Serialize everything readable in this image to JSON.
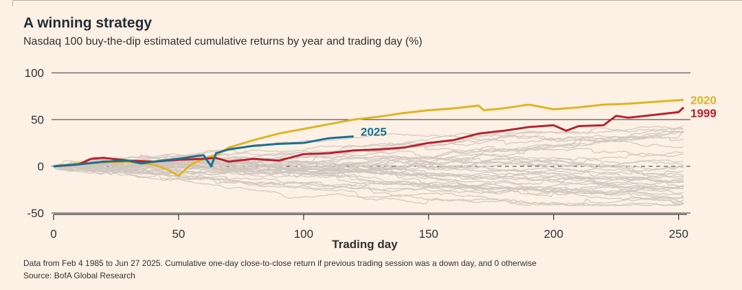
{
  "title": "A winning strategy",
  "subtitle": "Nasdaq 100 buy-the-dip estimated cumulative returns by year and trading day (%)",
  "footnote": "Data from Feb 4 1985 to Jun 27 2025. Cumulative one-day close-to-close return if previous trading session was a down day, and 0 otherwise",
  "source": "Source: BofA Global Research",
  "colors": {
    "background": "#fdf1e6",
    "gray_years": "#cfc5bd",
    "y2020": "#e0b420",
    "y1999": "#b8212f",
    "y2025": "#1b6f90",
    "axis": "#33302e"
  },
  "chart_data": {
    "type": "line",
    "title": "A winning strategy",
    "subtitle": "Nasdaq 100 buy-the-dip estimated cumulative returns by year and trading day (%)",
    "xlabel": "Trading day",
    "ylabel": "",
    "xlim": [
      0,
      252
    ],
    "ylim": [
      -50,
      100
    ],
    "xticks": [
      0,
      50,
      100,
      150,
      200,
      250
    ],
    "yticks": [
      -50,
      0,
      50,
      100
    ],
    "grid": true,
    "legend": "direct-labels",
    "series": [
      {
        "name": "2020",
        "color": "#e0b420",
        "x": [
          0,
          10,
          20,
          30,
          40,
          45,
          50,
          55,
          60,
          65,
          70,
          80,
          90,
          100,
          110,
          120,
          130,
          140,
          150,
          160,
          170,
          172,
          180,
          190,
          200,
          210,
          220,
          230,
          240,
          252
        ],
        "y": [
          0,
          3,
          4,
          5,
          2,
          -3,
          -10,
          2,
          8,
          12,
          20,
          28,
          35,
          40,
          45,
          50,
          53,
          57,
          60,
          62,
          65,
          60,
          62,
          66,
          61,
          63,
          66,
          67,
          69,
          71
        ]
      },
      {
        "name": "1999",
        "color": "#b8212f",
        "x": [
          0,
          10,
          15,
          20,
          30,
          40,
          50,
          60,
          65,
          70,
          80,
          90,
          100,
          110,
          120,
          130,
          140,
          150,
          160,
          170,
          180,
          190,
          200,
          205,
          210,
          220,
          225,
          230,
          240,
          250,
          252
        ],
        "y": [
          0,
          2,
          8,
          9,
          6,
          5,
          7,
          8,
          9,
          5,
          8,
          6,
          13,
          14,
          17,
          18,
          20,
          25,
          28,
          35,
          38,
          42,
          44,
          38,
          43,
          44,
          54,
          52,
          55,
          58,
          63
        ]
      },
      {
        "name": "2025",
        "color": "#1b6f90",
        "x": [
          0,
          10,
          20,
          30,
          35,
          40,
          50,
          60,
          63,
          65,
          70,
          80,
          90,
          100,
          110,
          120
        ],
        "y": [
          0,
          2,
          5,
          6,
          3,
          5,
          8,
          12,
          0,
          14,
          18,
          22,
          24,
          25,
          30,
          32
        ]
      }
    ],
    "background_series_count": 38
  }
}
